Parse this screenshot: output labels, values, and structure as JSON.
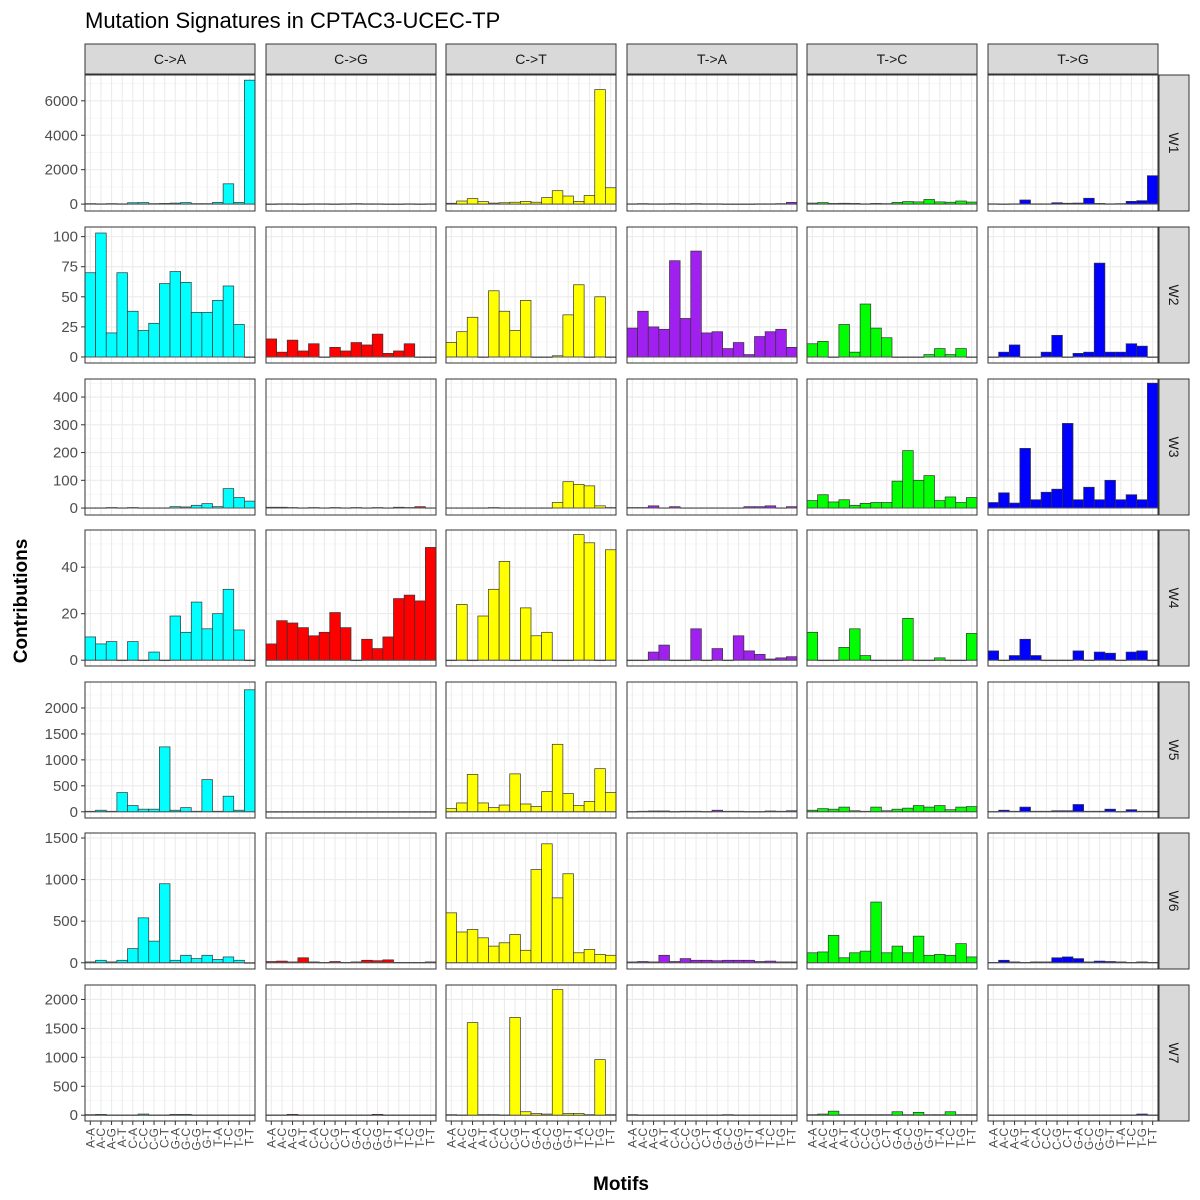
{
  "chart_data": {
    "type": "bar",
    "title": "Mutation Signatures in CPTAC3-UCEC-TP",
    "xlabel": "Motifs",
    "ylabel": "Contributions",
    "facet_columns": [
      "C->A",
      "C->G",
      "C->T",
      "T->A",
      "T->C",
      "T->G"
    ],
    "facet_rows": [
      "W1",
      "W2",
      "W3",
      "W4",
      "W5",
      "W6",
      "W7"
    ],
    "categories": [
      "A-A",
      "A-C",
      "A-G",
      "A-T",
      "C-A",
      "C-C",
      "C-G",
      "C-T",
      "G-A",
      "G-C",
      "G-G",
      "G-T",
      "T-A",
      "T-C",
      "T-G",
      "T-T"
    ],
    "tick_labels": [
      "A-A",
      "A-C",
      "A-G",
      "A-T",
      "C-A",
      "C-C",
      "C-G",
      "C-T",
      "G-A",
      "G-C",
      "G-G",
      "G-T",
      "T-A",
      "T-C",
      "T-G",
      "T-T"
    ],
    "colors": {
      "C->A": "#00ffff",
      "C->G": "#ff0000",
      "C->T": "#ffff00",
      "T->A": "#a020f0",
      "T->C": "#00ff00",
      "T->G": "#0000ff"
    },
    "rows": [
      {
        "name": "W1",
        "ylim": [
          -400,
          7500
        ],
        "yticks": [
          0,
          2000,
          4000,
          6000
        ],
        "yticklabels": [
          "0",
          "2000",
          "4000",
          "6000"
        ],
        "values": {
          "C->A": [
            30,
            20,
            30,
            20,
            80,
            90,
            30,
            40,
            60,
            90,
            30,
            30,
            100,
            1180,
            100,
            7200
          ],
          "C->G": [
            10,
            20,
            20,
            10,
            20,
            20,
            10,
            20,
            30,
            20,
            20,
            10,
            10,
            20,
            10,
            20
          ],
          "C->T": [
            50,
            180,
            320,
            150,
            60,
            80,
            110,
            160,
            110,
            380,
            780,
            470,
            160,
            500,
            6650,
            950
          ],
          "T->A": [
            20,
            30,
            20,
            20,
            30,
            20,
            30,
            20,
            20,
            10,
            10,
            10,
            20,
            20,
            30,
            100
          ],
          "T->C": [
            60,
            90,
            40,
            50,
            40,
            20,
            40,
            30,
            100,
            150,
            130,
            270,
            130,
            110,
            180,
            120
          ],
          "T->G": [
            20,
            10,
            20,
            240,
            20,
            20,
            80,
            50,
            60,
            340,
            40,
            20,
            30,
            160,
            200,
            1650
          ]
        }
      },
      {
        "name": "W2",
        "ylim": [
          -5,
          108
        ],
        "yticks": [
          0,
          25,
          50,
          75,
          100
        ],
        "yticklabels": [
          "0",
          "25",
          "50",
          "75",
          "100"
        ],
        "values": {
          "C->A": [
            70,
            103,
            20,
            70,
            38,
            22,
            28,
            61,
            71,
            62,
            37,
            37,
            47,
            59,
            27,
            0
          ],
          "C->G": [
            15,
            4,
            14,
            5,
            11,
            0,
            8,
            5,
            12,
            10,
            19,
            3,
            5,
            11,
            0,
            0
          ],
          "C->T": [
            12,
            21,
            33,
            0,
            55,
            38,
            22,
            47,
            0,
            0,
            1,
            35,
            60,
            0,
            50,
            0
          ],
          "T->A": [
            24,
            38,
            25,
            23,
            80,
            32,
            88,
            20,
            21,
            7,
            12,
            2,
            17,
            21,
            23,
            8
          ],
          "T->C": [
            11,
            13,
            0,
            27,
            4,
            44,
            24,
            16,
            0,
            0,
            0,
            2,
            7,
            2,
            7,
            0
          ],
          "T->G": [
            0,
            4,
            10,
            0,
            0,
            4,
            18,
            0,
            3,
            4,
            78,
            4,
            4,
            11,
            9,
            0
          ]
        }
      },
      {
        "name": "W3",
        "ylim": [
          -25,
          465
        ],
        "yticks": [
          0,
          100,
          200,
          300,
          400
        ],
        "yticklabels": [
          "0",
          "100",
          "200",
          "300",
          "400"
        ],
        "values": {
          "C->A": [
            1,
            1,
            2,
            1,
            2,
            1,
            1,
            1,
            5,
            4,
            10,
            16,
            5,
            70,
            38,
            25
          ],
          "C->G": [
            3,
            3,
            2,
            1,
            2,
            1,
            2,
            1,
            2,
            1,
            2,
            1,
            3,
            2,
            5,
            1
          ],
          "C->T": [
            1,
            1,
            1,
            1,
            2,
            1,
            1,
            1,
            1,
            1,
            20,
            95,
            85,
            80,
            8,
            2
          ],
          "T->A": [
            2,
            2,
            8,
            1,
            5,
            1,
            1,
            1,
            1,
            1,
            1,
            5,
            5,
            8,
            1,
            5
          ],
          "T->C": [
            27,
            48,
            22,
            30,
            10,
            17,
            20,
            20,
            97,
            207,
            100,
            117,
            27,
            40,
            20,
            38
          ],
          "T->G": [
            20,
            55,
            18,
            215,
            30,
            57,
            68,
            305,
            30,
            75,
            30,
            100,
            30,
            48,
            30,
            450
          ]
        }
      },
      {
        "name": "W4",
        "ylim": [
          -2.5,
          56
        ],
        "yticks": [
          0,
          20,
          40
        ],
        "yticklabels": [
          "0",
          "20",
          "40"
        ],
        "values": {
          "C->A": [
            10,
            7,
            8,
            0,
            8,
            0,
            3.5,
            0,
            19,
            12,
            25,
            13.5,
            20,
            30.5,
            13,
            0
          ],
          "C->G": [
            7,
            17,
            16,
            14,
            10.5,
            12,
            20.5,
            14,
            0,
            9,
            5,
            10,
            26.5,
            28,
            25.5,
            48.5
          ],
          "C->T": [
            0,
            24,
            0,
            19,
            30.5,
            42.5,
            0,
            22.5,
            10.5,
            12,
            0,
            0,
            54,
            50.5,
            0,
            47.5
          ],
          "T->A": [
            0,
            0,
            3.5,
            6.5,
            0,
            0,
            13.5,
            0,
            5,
            0,
            10.5,
            4,
            2.5,
            0.5,
            1,
            1.5
          ],
          "T->C": [
            12,
            0,
            0,
            5.5,
            13.5,
            2,
            0,
            0,
            0,
            18,
            0,
            0,
            1,
            0,
            0,
            11.5
          ],
          "T->G": [
            4,
            0,
            2,
            9,
            2,
            0,
            0,
            0,
            4,
            0,
            3.5,
            3,
            0,
            3.5,
            4,
            0
          ]
        }
      },
      {
        "name": "W5",
        "ylim": [
          -120,
          2500
        ],
        "yticks": [
          0,
          500,
          1000,
          1500,
          2000
        ],
        "yticklabels": [
          "0",
          "500",
          "1000",
          "1500",
          "2000"
        ],
        "values": {
          "C->A": [
            10,
            30,
            10,
            370,
            120,
            50,
            50,
            1250,
            30,
            80,
            10,
            620,
            10,
            300,
            30,
            2350
          ],
          "C->G": [
            1,
            1,
            1,
            1,
            1,
            1,
            1,
            1,
            1,
            1,
            1,
            1,
            1,
            1,
            1,
            1
          ],
          "C->T": [
            60,
            170,
            720,
            170,
            80,
            130,
            730,
            150,
            100,
            390,
            1300,
            350,
            120,
            200,
            830,
            370
          ],
          "T->A": [
            5,
            10,
            15,
            15,
            5,
            10,
            10,
            5,
            30,
            10,
            10,
            5,
            5,
            15,
            10,
            20
          ],
          "T->C": [
            30,
            60,
            50,
            90,
            20,
            10,
            90,
            20,
            50,
            70,
            120,
            90,
            120,
            40,
            90,
            100
          ],
          "T->G": [
            5,
            30,
            10,
            90,
            10,
            10,
            20,
            20,
            140,
            10,
            10,
            50,
            5,
            40,
            10,
            10
          ]
        }
      },
      {
        "name": "W6",
        "ylim": [
          -75,
          1560
        ],
        "yticks": [
          0,
          500,
          1000,
          1500
        ],
        "yticklabels": [
          "0",
          "500",
          "1000",
          "1500"
        ],
        "values": {
          "C->A": [
            10,
            30,
            10,
            30,
            170,
            540,
            260,
            950,
            30,
            90,
            50,
            90,
            40,
            70,
            30,
            0
          ],
          "C->G": [
            15,
            20,
            10,
            60,
            10,
            5,
            15,
            5,
            10,
            30,
            25,
            35,
            5,
            5,
            5,
            10
          ],
          "C->T": [
            600,
            370,
            400,
            300,
            200,
            240,
            340,
            150,
            1120,
            1430,
            780,
            1070,
            120,
            160,
            100,
            90
          ],
          "T->A": [
            10,
            15,
            10,
            90,
            15,
            50,
            30,
            30,
            25,
            30,
            30,
            30,
            15,
            20,
            10,
            10
          ],
          "T->C": [
            120,
            130,
            330,
            60,
            120,
            140,
            730,
            120,
            200,
            120,
            320,
            90,
            100,
            90,
            230,
            70
          ],
          "T->G": [
            5,
            30,
            10,
            5,
            10,
            10,
            60,
            70,
            50,
            10,
            20,
            15,
            10,
            5,
            10,
            5
          ]
        }
      },
      {
        "name": "W7",
        "ylim": [
          -100,
          2250
        ],
        "yticks": [
          0,
          500,
          1000,
          1500,
          2000
        ],
        "yticklabels": [
          "0",
          "500",
          "1000",
          "1500",
          "2000"
        ],
        "values": {
          "C->A": [
            10,
            15,
            5,
            5,
            5,
            20,
            5,
            5,
            15,
            15,
            5,
            5,
            5,
            5,
            5,
            5
          ],
          "C->G": [
            5,
            5,
            15,
            5,
            5,
            5,
            5,
            5,
            5,
            5,
            15,
            5,
            5,
            5,
            5,
            5
          ],
          "C->T": [
            10,
            5,
            1600,
            10,
            10,
            5,
            1690,
            60,
            30,
            20,
            2170,
            30,
            30,
            10,
            960,
            10
          ],
          "T->A": [
            10,
            5,
            5,
            5,
            5,
            5,
            5,
            5,
            5,
            10,
            5,
            5,
            5,
            5,
            5,
            5
          ],
          "T->C": [
            10,
            20,
            70,
            10,
            10,
            10,
            10,
            10,
            60,
            10,
            50,
            10,
            10,
            60,
            10,
            10
          ],
          "T->G": [
            5,
            5,
            5,
            5,
            5,
            5,
            5,
            5,
            5,
            5,
            5,
            5,
            5,
            5,
            20,
            5
          ]
        }
      }
    ]
  }
}
